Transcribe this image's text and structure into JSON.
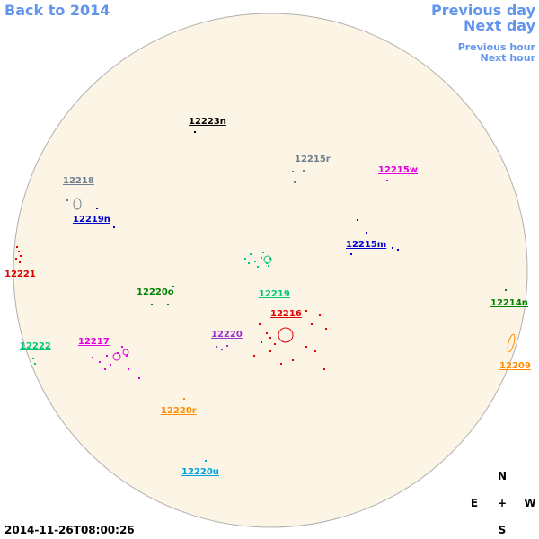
{
  "nav": {
    "back": "Back to 2014",
    "previous_day": "Previous day",
    "next_day": "Next day",
    "previous_hour": "Previous hour",
    "next_hour": "Next hour"
  },
  "regions": [
    {
      "label": "12223n",
      "color": "#000000"
    },
    {
      "label": "12215r",
      "color": "#708090"
    },
    {
      "label": "12215w",
      "color": "#e000e0"
    },
    {
      "label": "12218",
      "color": "#708090"
    },
    {
      "label": "12219n",
      "color": "#0000cd"
    },
    {
      "label": "12215m",
      "color": "#0000cd"
    },
    {
      "label": "12221",
      "color": "#e00000"
    },
    {
      "label": "12220o",
      "color": "#008000"
    },
    {
      "label": "12219",
      "color": "#00c878"
    },
    {
      "label": "12214n",
      "color": "#008000"
    },
    {
      "label": "12216",
      "color": "#e00000"
    },
    {
      "label": "12222",
      "color": "#00c878"
    },
    {
      "label": "12217",
      "color": "#e000e0"
    },
    {
      "label": "12220",
      "color": "#9932cc"
    },
    {
      "label": "12209",
      "color": "#ff8c00"
    },
    {
      "label": "12220r",
      "color": "#ff8c00"
    },
    {
      "label": "12220u",
      "color": "#00a0e0"
    }
  ],
  "compass": {
    "north": "N",
    "east": "E",
    "center": "+",
    "west": "W",
    "south": "S"
  },
  "timestamp": "2014-11-26T08:00:26"
}
